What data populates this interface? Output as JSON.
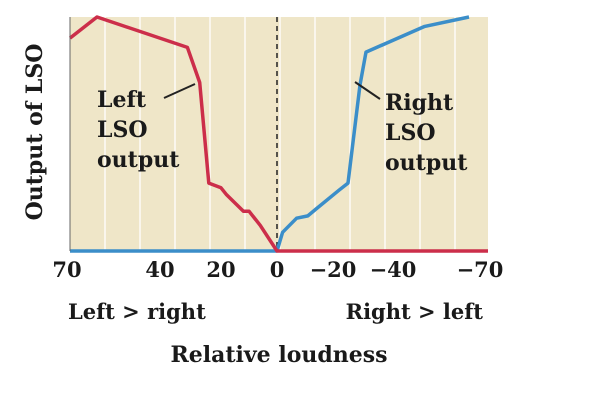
{
  "chart_data": {
    "type": "line",
    "title": "",
    "xlabel": "Relative loudness",
    "ylabel": "Output of LSO",
    "xlim": [
      70,
      -70
    ],
    "ylim": [
      0,
      1
    ],
    "x_ticks": [
      {
        "value": 70,
        "label": "70"
      },
      {
        "value": 40,
        "label": "40"
      },
      {
        "value": 20,
        "label": "20"
      },
      {
        "value": 0,
        "label": "0"
      },
      {
        "value": -20,
        "label": "−20"
      },
      {
        "value": -40,
        "label": "−40"
      },
      {
        "value": -70,
        "label": "−70"
      }
    ],
    "direction_labels": {
      "left": "Left > right",
      "right": "Right > left"
    },
    "grid": true,
    "colors": {
      "background": "#efe6c8",
      "grid": "#ffffff",
      "left_series": "#cc2e4a",
      "right_series": "#3b8ec9",
      "axis": "#222222"
    },
    "series": [
      {
        "name": "Left LSO output",
        "color": "#cc2e4a",
        "x": [
          70,
          61,
          31,
          27,
          24,
          20,
          18,
          12,
          10,
          6,
          0,
          -70
        ],
        "y": [
          0.91,
          1.0,
          0.87,
          0.72,
          0.29,
          0.27,
          0.24,
          0.17,
          0.17,
          0.11,
          0.0,
          0.0
        ]
      },
      {
        "name": "Right LSO output",
        "color": "#3b8ec9",
        "x": [
          70,
          0,
          -2,
          -7,
          -11,
          -14,
          -22,
          -25,
          -29,
          -31,
          -50,
          -64
        ],
        "y": [
          0.0,
          0.0,
          0.08,
          0.14,
          0.15,
          0.18,
          0.26,
          0.29,
          0.71,
          0.85,
          0.96,
          1.0
        ]
      }
    ],
    "annotations": [
      {
        "series": "Left LSO output",
        "lines": [
          "Left",
          "LSO",
          "output"
        ]
      },
      {
        "series": "Right LSO output",
        "lines": [
          "Right",
          "LSO",
          "output"
        ]
      }
    ]
  }
}
